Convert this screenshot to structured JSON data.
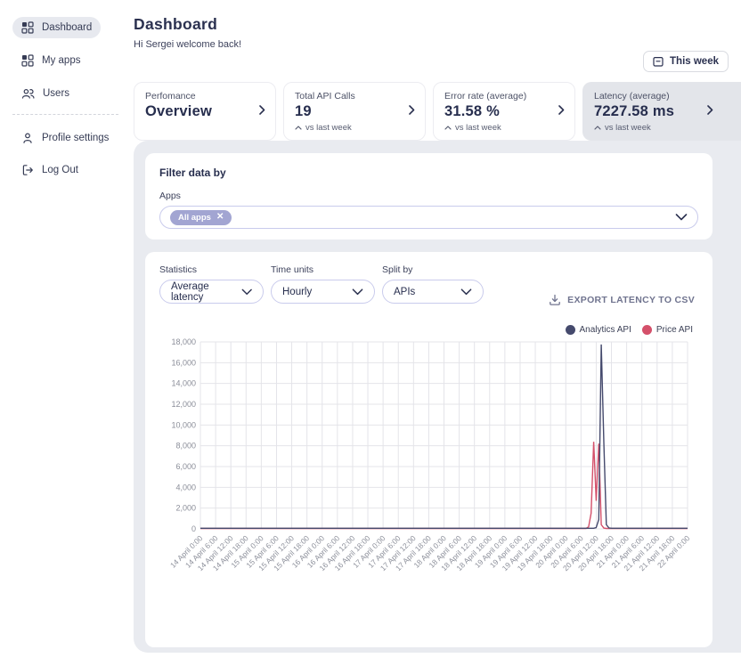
{
  "sidebar": {
    "items": [
      {
        "label": "Dashboard",
        "active": true
      },
      {
        "label": "My apps",
        "active": false
      },
      {
        "label": "Users",
        "active": false
      }
    ],
    "footer_items": [
      {
        "label": "Profile settings"
      },
      {
        "label": "Log Out"
      }
    ]
  },
  "header": {
    "title": "Dashboard",
    "greeting": "Hi Sergei welcome back!",
    "week_button_label": "This week"
  },
  "stat_cards": [
    {
      "label": "Perfomance",
      "value": "Overview",
      "sub": ""
    },
    {
      "label": "Total API Calls",
      "value": "19",
      "sub": "vs last week"
    },
    {
      "label": "Error rate (average)",
      "value": "31.58 %",
      "sub": "vs last week"
    },
    {
      "label": "Latency (average)",
      "value": "7227.58 ms",
      "sub": "vs last week",
      "selected": true
    }
  ],
  "filter": {
    "title": "Filter data by",
    "apps_label": "Apps",
    "chip_label": "All apps"
  },
  "controls": {
    "statistics": {
      "label": "Statistics",
      "value": "Average latency"
    },
    "time_units": {
      "label": "Time units",
      "value": "Hourly"
    },
    "split_by": {
      "label": "Split by",
      "value": "APIs"
    },
    "export_label": "EXPORT LATENCY TO CSV"
  },
  "colors": {
    "accent_purple": "#a2a5d2",
    "navy": "#272e4e",
    "analytics_line": "#454a6d",
    "price_line": "#d4506a",
    "selected_card_bg": "#e3e5ea",
    "content_bg": "#e9ebf0"
  },
  "chart_data": {
    "type": "line",
    "title": "",
    "xlabel": "",
    "ylabel": "",
    "ylim": [
      0,
      18000
    ],
    "ytick_step": 2000,
    "grid": true,
    "legend_position": "top-right",
    "x_hours": 192,
    "x_ticks": [
      "14 April 0:00",
      "14 April 6:00",
      "14 April 12:00",
      "14 April 18:00",
      "15 April 0:00",
      "15 April 6:00",
      "15 April 12:00",
      "15 April 18:00",
      "16 April 0:00",
      "16 April 6:00",
      "16 April 12:00",
      "16 April 18:00",
      "17 April 0:00",
      "17 April 6:00",
      "17 April 12:00",
      "17 April 18:00",
      "18 April 0:00",
      "18 April 6:00",
      "18 April 12:00",
      "18 April 18:00",
      "19 April 0:00",
      "19 April 6:00",
      "19 April 12:00",
      "19 April 18:00",
      "20 April 0:00",
      "20 April 6:00",
      "20 April 12:00",
      "20 April 18:00",
      "21 April 0:00",
      "21 April 6:00",
      "21 April 12:00",
      "21 April 18:00",
      "22 April 0:00"
    ],
    "series": [
      {
        "name": "Analytics API",
        "color": "#454a6d",
        "baseline": 60,
        "spikes": {
          "156": 120,
          "157": 900,
          "158": 17750,
          "159": 8300,
          "160": 400,
          "161": 90
        }
      },
      {
        "name": "Price API",
        "color": "#d4506a",
        "baseline": 45,
        "spikes": {
          "153": 200,
          "154": 1500,
          "155": 8390,
          "156": 2700,
          "157": 8200,
          "158": 400,
          "159": 80
        }
      }
    ]
  }
}
